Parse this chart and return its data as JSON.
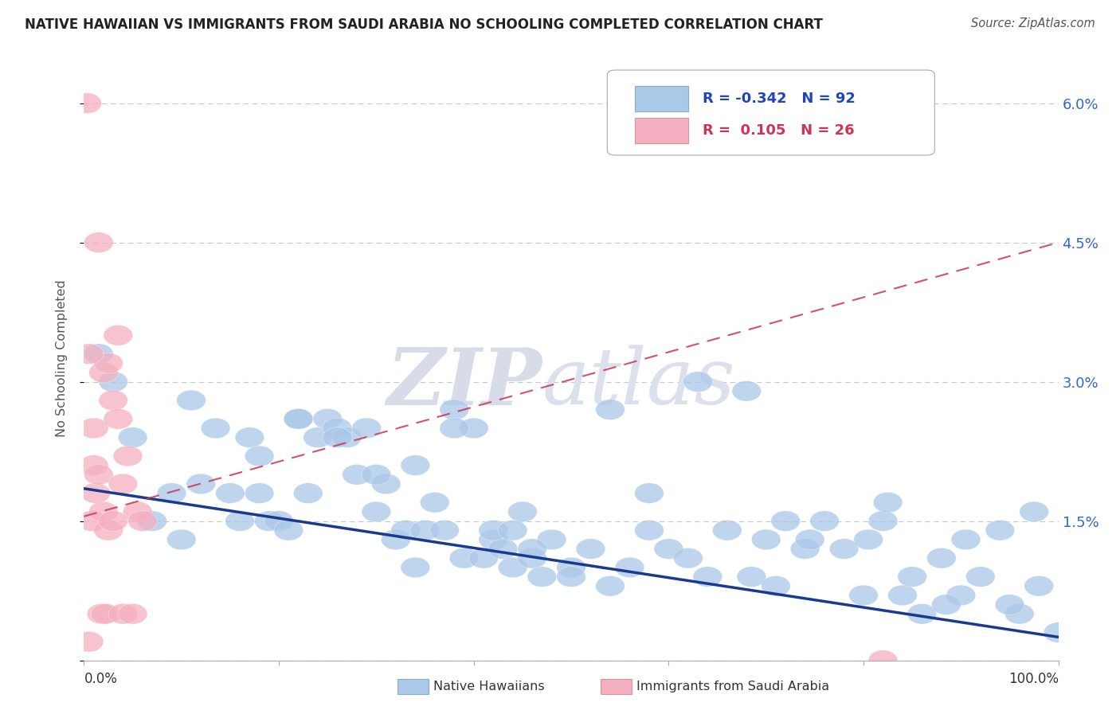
{
  "title": "NATIVE HAWAIIAN VS IMMIGRANTS FROM SAUDI ARABIA NO SCHOOLING COMPLETED CORRELATION CHART",
  "source": "Source: ZipAtlas.com",
  "ylabel": "No Schooling Completed",
  "xmin": 0.0,
  "xmax": 100.0,
  "ymin": 0.0,
  "ymax": 6.5,
  "ytick_vals": [
    0.0,
    1.5,
    3.0,
    4.5,
    6.0
  ],
  "blue_R": -0.342,
  "blue_N": 92,
  "pink_R": 0.105,
  "pink_N": 26,
  "blue_color": "#aac8e8",
  "pink_color": "#f5afc0",
  "blue_line_color": "#1a3a8f",
  "pink_line_color": "#cc3355",
  "legend_border_color": "#aaaaaa",
  "blue_scatter_x": [
    1.5,
    3.0,
    5.0,
    7.0,
    9.0,
    10.0,
    11.0,
    12.0,
    13.5,
    15.0,
    16.0,
    17.0,
    18.0,
    19.0,
    20.0,
    21.0,
    22.0,
    23.0,
    24.0,
    25.0,
    26.0,
    27.0,
    28.0,
    29.0,
    30.0,
    31.0,
    32.0,
    33.0,
    34.0,
    35.0,
    36.0,
    37.0,
    38.0,
    39.0,
    40.0,
    41.0,
    42.0,
    43.0,
    44.0,
    45.0,
    46.0,
    47.0,
    48.0,
    50.0,
    52.0,
    54.0,
    56.0,
    58.0,
    60.0,
    62.0,
    64.0,
    66.0,
    68.0,
    70.0,
    72.0,
    74.0,
    76.0,
    78.0,
    80.0,
    82.0,
    84.0,
    86.0,
    88.0,
    90.0,
    92.0,
    94.0,
    96.0,
    98.0,
    100.0,
    63.0,
    68.5,
    71.0,
    74.5,
    80.5,
    82.5,
    85.0,
    88.5,
    90.5,
    95.0,
    97.5,
    34.0,
    38.0,
    42.0,
    44.0,
    46.0,
    50.0,
    54.0,
    58.0,
    18.0,
    22.0,
    26.0,
    30.0
  ],
  "blue_scatter_y": [
    3.3,
    3.0,
    2.4,
    1.5,
    1.8,
    1.3,
    2.8,
    1.9,
    2.5,
    1.8,
    1.5,
    2.4,
    1.8,
    1.5,
    1.5,
    1.4,
    2.6,
    1.8,
    2.4,
    2.6,
    2.5,
    2.4,
    2.0,
    2.5,
    1.6,
    1.9,
    1.3,
    1.4,
    2.1,
    1.4,
    1.7,
    1.4,
    2.7,
    1.1,
    2.5,
    1.1,
    1.3,
    1.2,
    1.0,
    1.6,
    1.1,
    0.9,
    1.3,
    1.0,
    1.2,
    2.7,
    1.0,
    1.8,
    1.2,
    1.1,
    0.9,
    1.4,
    2.9,
    1.3,
    1.5,
    1.2,
    1.5,
    1.2,
    0.7,
    1.5,
    0.7,
    0.5,
    1.1,
    0.7,
    0.9,
    1.4,
    0.5,
    0.8,
    0.3,
    3.0,
    0.9,
    0.8,
    1.3,
    1.3,
    1.7,
    0.9,
    0.6,
    1.3,
    0.6,
    1.6,
    1.0,
    2.5,
    1.4,
    1.4,
    1.2,
    0.9,
    0.8,
    1.4,
    2.2,
    2.6,
    2.4,
    2.0
  ],
  "pink_scatter_x": [
    0.3,
    0.5,
    0.8,
    1.0,
    1.2,
    1.5,
    1.8,
    2.0,
    2.2,
    2.5,
    3.0,
    3.5,
    4.0,
    4.5,
    5.0,
    5.5,
    6.0,
    0.5,
    1.0,
    1.5,
    2.0,
    2.5,
    3.0,
    3.5,
    4.0,
    82.0
  ],
  "pink_scatter_y": [
    6.0,
    0.2,
    1.5,
    2.5,
    1.8,
    4.5,
    0.5,
    3.1,
    0.5,
    3.2,
    2.8,
    3.5,
    0.5,
    2.2,
    0.5,
    1.6,
    1.5,
    3.3,
    2.1,
    2.0,
    1.6,
    1.4,
    1.5,
    2.6,
    1.9,
    0.0
  ],
  "blue_line_x0": 0.0,
  "blue_line_x1": 100.0,
  "blue_line_y0": 1.85,
  "blue_line_y1": 0.25,
  "pink_line_x0": 0.0,
  "pink_line_x1": 100.0,
  "pink_line_y0": 1.55,
  "pink_line_y1": 4.5
}
